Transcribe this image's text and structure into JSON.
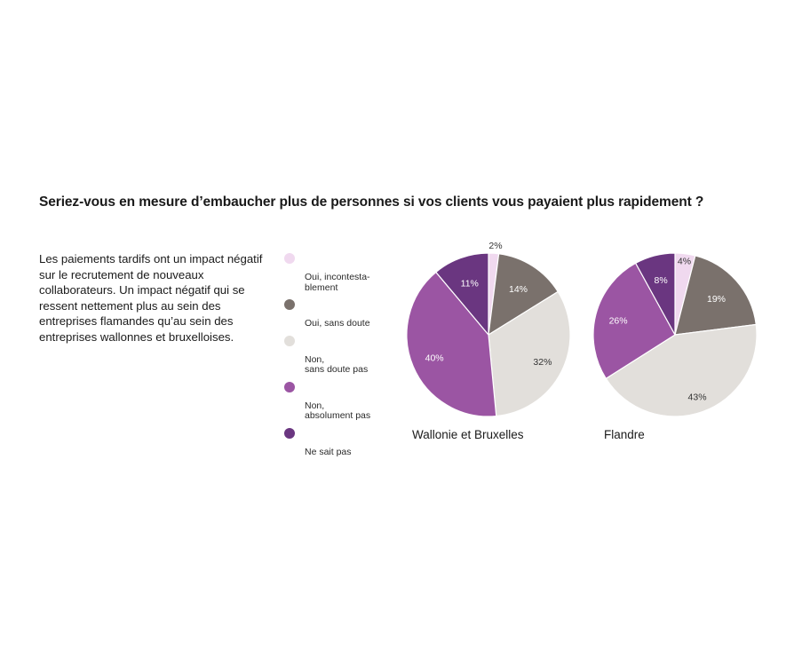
{
  "title": "Seriez-vous en mesure d’embaucher plus de personnes si vos clients vous payaient plus rapidement ?",
  "description": "Les paiements tardifs ont un impact négatif sur le recrutement de nouveaux collaborateurs. Un impact négatif qui se ressent nettement plus au sein des entreprises flamandes qu’au sein des entreprises wallonnes et bruxelloises.",
  "colors": {
    "oui_incontestablement": "#f0d9ef",
    "oui_sans_doute": "#7a716c",
    "non_sans_doute_pas": "#e2dfdb",
    "non_absolument_pas": "#9b55a3",
    "ne_sait_pas": "#6a3680"
  },
  "legend": [
    {
      "label": "Oui, incontesta-\nblement",
      "color": "#f0d9ef"
    },
    {
      "label": "Oui, sans doute",
      "color": "#7a716c"
    },
    {
      "label": "Non,\nsans doute pas",
      "color": "#e2dfdb"
    },
    {
      "label": "Non,\nabsolument pas",
      "color": "#9b55a3"
    },
    {
      "label": "Ne sait pas",
      "color": "#6a3680"
    }
  ],
  "chart_data": [
    {
      "type": "pie",
      "title": "Wallonie et Bruxelles",
      "categories": [
        "Oui, incontestablement",
        "Oui, sans doute",
        "Non, sans doute pas",
        "Non, absolument pas",
        "Ne sait pas"
      ],
      "values": [
        2,
        14,
        32,
        40,
        11
      ],
      "labels": [
        "2%",
        "14%",
        "32%",
        "40%",
        "11%"
      ],
      "colors": [
        "#f0d9ef",
        "#7a716c",
        "#e2dfdb",
        "#9b55a3",
        "#6a3680"
      ]
    },
    {
      "type": "pie",
      "title": "Flandre",
      "categories": [
        "Oui, incontestablement",
        "Oui, sans doute",
        "Non, sans doute pas",
        "Non, absolument pas",
        "Ne sait pas"
      ],
      "values": [
        4,
        19,
        43,
        26,
        8
      ],
      "labels": [
        "4%",
        "19%",
        "43%",
        "26%",
        "8%"
      ],
      "colors": [
        "#f0d9ef",
        "#7a716c",
        "#e2dfdb",
        "#9b55a3",
        "#6a3680"
      ]
    }
  ]
}
